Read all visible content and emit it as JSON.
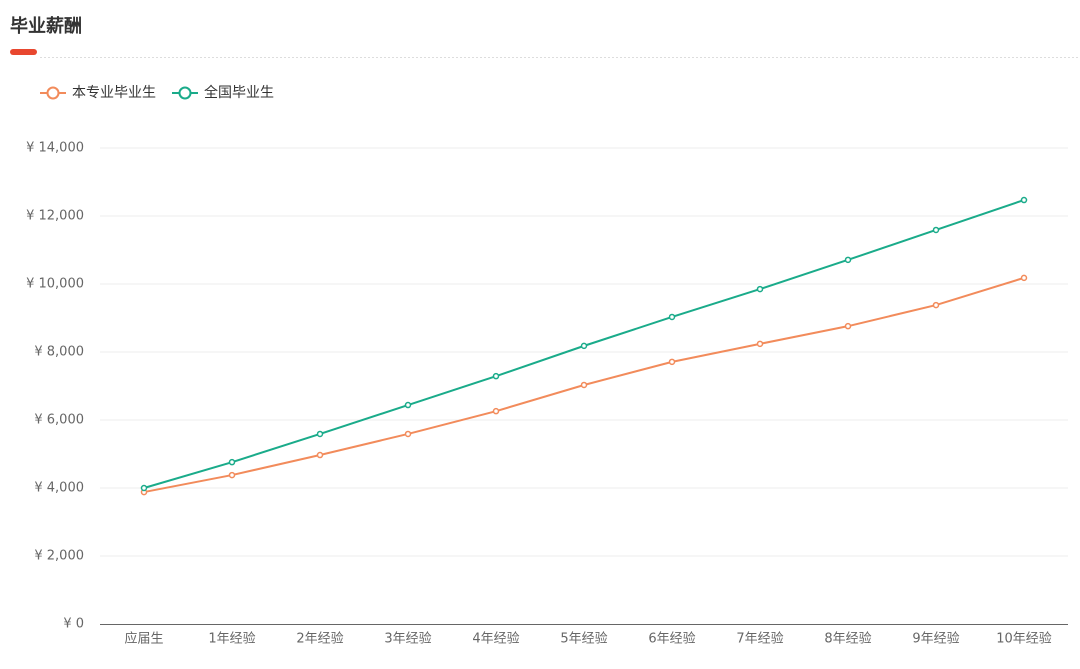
{
  "chart_data": {
    "type": "line",
    "title": "毕业薪酬",
    "categories": [
      "应届生",
      "1年经验",
      "2年经验",
      "3年经验",
      "4年经验",
      "5年经验",
      "6年经验",
      "7年经验",
      "8年经验",
      "9年经验",
      "10年经验"
    ],
    "series": [
      {
        "name": "本专业毕业生",
        "color": "#f28b5b",
        "values": [
          3880,
          4380,
          4970,
          5590,
          6260,
          7030,
          7710,
          8240,
          8760,
          9380,
          10180
        ]
      },
      {
        "name": "全国毕业生",
        "color": "#1aab8a",
        "values": [
          4000,
          4760,
          5590,
          6440,
          7290,
          8180,
          9030,
          9850,
          10710,
          11590,
          12470
        ]
      }
    ],
    "ylim": [
      0,
      14000
    ],
    "yticks": [
      {
        "value": 0,
        "label": "¥ 0"
      },
      {
        "value": 2000,
        "label": "¥ 2,000"
      },
      {
        "value": 4000,
        "label": "¥ 4,000"
      },
      {
        "value": 6000,
        "label": "¥ 6,000"
      },
      {
        "value": 8000,
        "label": "¥ 8,000"
      },
      {
        "value": 10000,
        "label": "¥ 10,000"
      },
      {
        "value": 12000,
        "label": "¥ 12,000"
      },
      {
        "value": 14000,
        "label": "¥ 14,000"
      }
    ],
    "grid": true
  }
}
